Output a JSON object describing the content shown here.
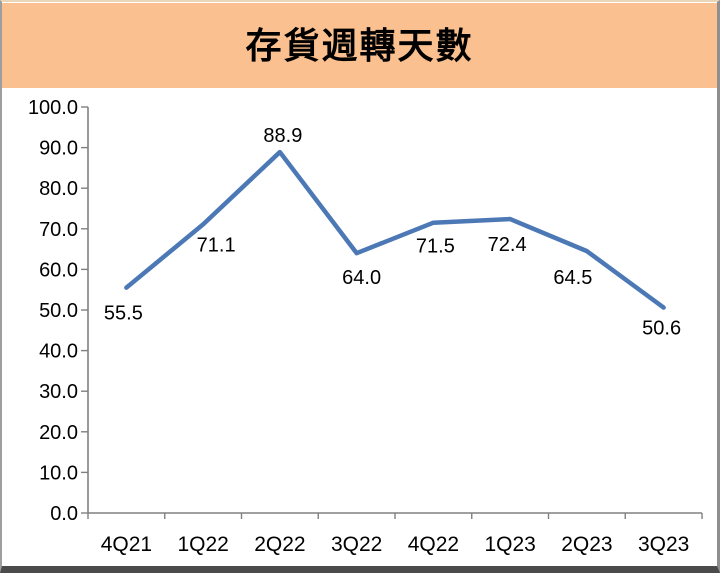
{
  "banner": {
    "title": "存貨週轉天數",
    "background_color": "#FAC090"
  },
  "chart_data": {
    "type": "line",
    "title": "存貨週轉天數",
    "categories": [
      "4Q21",
      "1Q22",
      "2Q22",
      "3Q22",
      "4Q22",
      "1Q23",
      "2Q23",
      "3Q23"
    ],
    "values": [
      55.5,
      71.1,
      88.9,
      64.0,
      71.5,
      72.4,
      64.5,
      50.6
    ],
    "data_labels": [
      "55.5",
      "71.1",
      "88.9",
      "64.0",
      "71.5",
      "72.4",
      "64.5",
      "50.6"
    ],
    "xlabel": "",
    "ylabel": "",
    "ylim": [
      0,
      100
    ],
    "ytick_step": 10,
    "ytick_labels": [
      "0.0",
      "10.0",
      "20.0",
      "30.0",
      "40.0",
      "50.0",
      "60.0",
      "70.0",
      "80.0",
      "90.0",
      "100.0"
    ],
    "grid": "off",
    "legend": "none",
    "line_color": "#4C79B5",
    "axis_color": "#808080",
    "label_color": "#000000"
  }
}
